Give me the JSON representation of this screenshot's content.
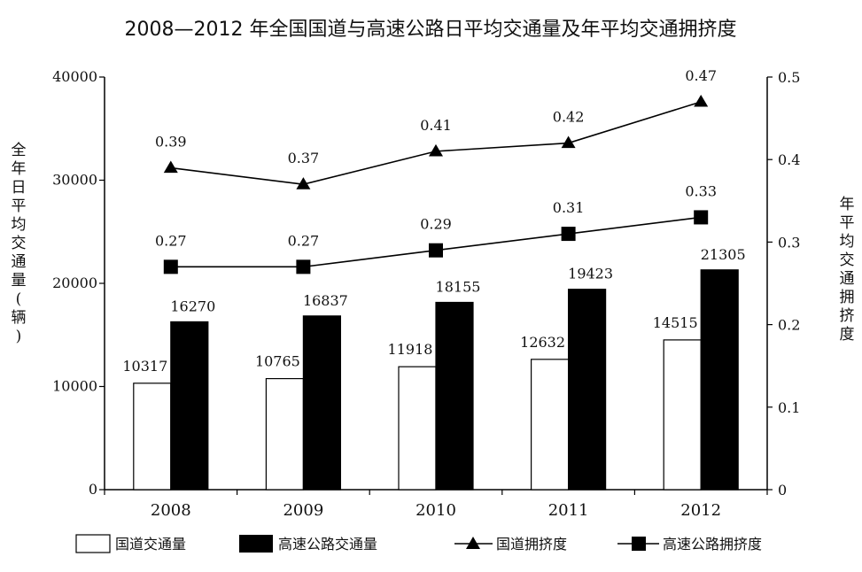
{
  "chart_data": {
    "type": "bar",
    "title": "2008—2012 年全国国道与高速公路日平均交通量及年平均交通拥挤度",
    "categories": [
      "2008",
      "2009",
      "2010",
      "2011",
      "2012"
    ],
    "ylabel_left": "全年日平均交通量(辆)",
    "ylabel_right": "年平均交通拥挤度",
    "ylim_left": [
      0,
      40000
    ],
    "ylim_right": [
      0,
      0.5
    ],
    "yticks_left": [
      "0",
      "10000",
      "20000",
      "30000",
      "40000"
    ],
    "yticks_right": [
      "0",
      "0.1",
      "0.2",
      "0.3",
      "0.4",
      "0.5"
    ],
    "bar_series": [
      {
        "name": "国道交通量",
        "values": [
          10317,
          10765,
          11918,
          12632,
          14515
        ],
        "color": "#ffffff"
      },
      {
        "name": "高速公路交通量",
        "values": [
          16270,
          16837,
          18155,
          19423,
          21305
        ],
        "color": "#000000"
      }
    ],
    "line_series": [
      {
        "name": "国道拥挤度",
        "values": [
          0.39,
          0.37,
          0.41,
          0.42,
          0.47
        ],
        "marker": "triangle",
        "labels": [
          "0.39",
          "0.37",
          "0.41",
          "0.42",
          "0.47"
        ]
      },
      {
        "name": "高速公路拥挤度",
        "values": [
          0.27,
          0.27,
          0.29,
          0.31,
          0.33
        ],
        "marker": "square",
        "labels": [
          "0.27",
          "0.27",
          "0.29",
          "0.31",
          "0.33"
        ]
      }
    ],
    "plot_values_note": "",
    "grid": false,
    "legend_position": "bottom"
  }
}
